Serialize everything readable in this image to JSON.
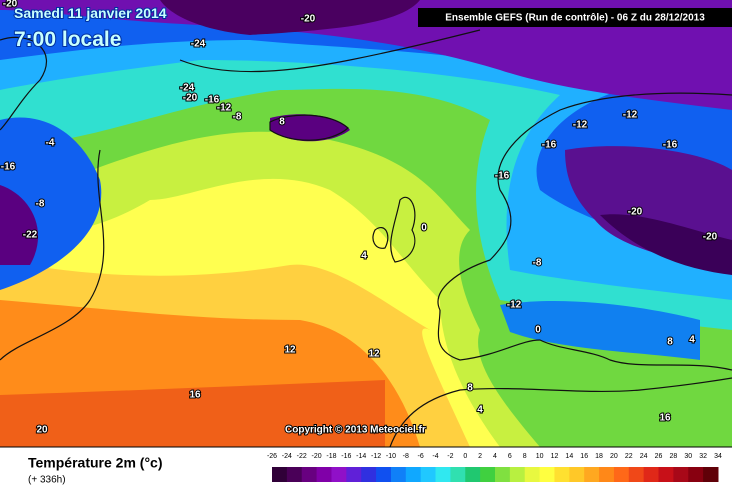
{
  "header": {
    "date": "Samedi 11 janvier 2014",
    "time": "7:00 locale",
    "run": "Ensemble GEFS (Run de contrôle)  -  06 Z du 28/12/2013"
  },
  "copyright": "Copyright © 2013 Meteociel.fr",
  "footer": {
    "title": "Température 2m (°c)",
    "subtitle": "(+ 336h)"
  },
  "scale": {
    "labels": [
      -26,
      -24,
      -22,
      -20,
      -18,
      -16,
      -14,
      -12,
      -10,
      -8,
      -6,
      -4,
      -2,
      0,
      2,
      4,
      6,
      8,
      10,
      12,
      14,
      16,
      18,
      20,
      22,
      24,
      26,
      28,
      30,
      32,
      34
    ],
    "colors": [
      "#300038",
      "#4a0058",
      "#680080",
      "#8000a8",
      "#9010c8",
      "#6020d8",
      "#3030e0",
      "#1050f0",
      "#1080f8",
      "#10a8ff",
      "#20c8ff",
      "#30e8f0",
      "#30e0b0",
      "#20c870",
      "#40d040",
      "#80e040",
      "#b8f040",
      "#e8f840",
      "#ffff40",
      "#ffe030",
      "#ffc828",
      "#ffa820",
      "#ff8818",
      "#ff6818",
      "#f04818",
      "#e02818",
      "#c81018",
      "#a80818",
      "#880010",
      "#600008"
    ]
  },
  "map": {
    "labels": [
      -20,
      -20,
      -24,
      -24,
      -20,
      -16,
      -12,
      -8,
      -4,
      -16,
      -8,
      -22,
      0,
      4,
      8,
      12,
      12,
      16,
      20,
      -12,
      -16,
      -12,
      -16,
      -16,
      -20,
      -20,
      -8,
      -12,
      0,
      4,
      8,
      16,
      8,
      4
    ]
  }
}
